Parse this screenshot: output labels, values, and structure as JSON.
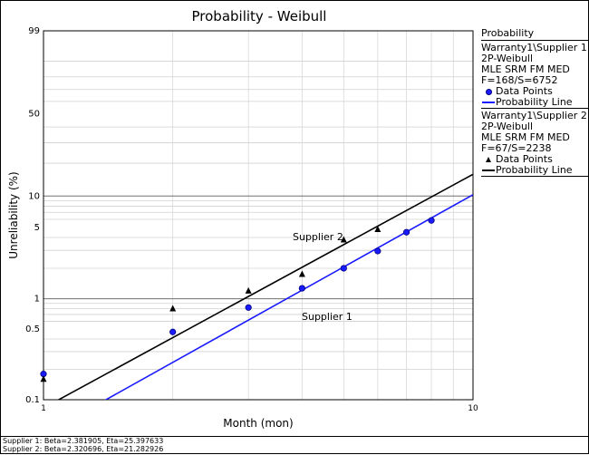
{
  "chart_data": {
    "type": "scatter",
    "title": "Probability - Weibull",
    "xlabel": "Month (mon)",
    "ylabel": "Unreliability (%)",
    "x_scale": "log",
    "y_scale": "weibull-probability",
    "xlim": [
      1,
      10
    ],
    "ylim": [
      0.1,
      99
    ],
    "x_ticks": [
      "1",
      "10"
    ],
    "y_ticks": [
      "0.1",
      "0.5",
      "1",
      "5",
      "10",
      "50",
      "99"
    ],
    "grid": true,
    "legend_position": "right",
    "series": [
      {
        "name": "Supplier 1",
        "marker": "circle",
        "color": "#1a1aff",
        "line_color": "#1a1aff",
        "points": [
          [
            1,
            0.18
          ],
          [
            2,
            0.47
          ],
          [
            3,
            0.82
          ],
          [
            4,
            1.27
          ],
          [
            5,
            2.0
          ],
          [
            6,
            2.95
          ],
          [
            7,
            4.5
          ],
          [
            8,
            5.85
          ]
        ],
        "fit": {
          "beta": 2.381905,
          "eta": 25.397633
        }
      },
      {
        "name": "Supplier 2",
        "marker": "triangle",
        "color": "#000000",
        "line_color": "#000000",
        "points": [
          [
            1,
            0.16
          ],
          [
            2,
            0.8
          ],
          [
            3,
            1.2
          ],
          [
            4,
            1.75
          ],
          [
            5,
            3.8
          ],
          [
            6,
            4.8
          ]
        ],
        "fit": {
          "beta": 2.320696,
          "eta": 21.282926
        }
      }
    ],
    "annotations": [
      "Supplier 2",
      "Supplier 1"
    ]
  },
  "legend": {
    "header": "Probability",
    "blocks": [
      {
        "folio": "Warranty1\\Supplier 1",
        "model": "2P-Weibull",
        "method": "MLE SRM FM MED",
        "counts": "F=168/S=6752",
        "points_label": "Data Points",
        "line_label": "Probability Line",
        "line_color": "#1a1aff"
      },
      {
        "folio": "Warranty1\\Supplier 2",
        "model": "2P-Weibull",
        "method": "MLE SRM FM MED",
        "counts": "F=67/S=2238",
        "points_label": "Data Points",
        "line_label": "Probability Line",
        "line_color": "#000000"
      }
    ]
  },
  "footer": {
    "line1": "Supplier 1: Beta=2.381905, Eta=25.397633",
    "line2": "Supplier 2: Beta=2.320696, Eta=21.282926"
  }
}
